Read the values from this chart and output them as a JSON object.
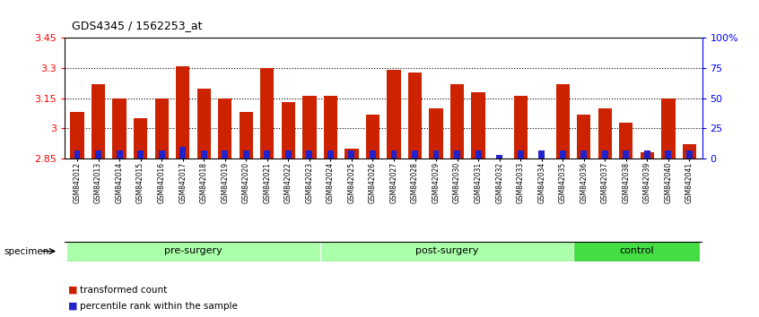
{
  "title": "GDS4345 / 1562253_at",
  "samples": [
    "GSM842012",
    "GSM842013",
    "GSM842014",
    "GSM842015",
    "GSM842016",
    "GSM842017",
    "GSM842018",
    "GSM842019",
    "GSM842020",
    "GSM842021",
    "GSM842022",
    "GSM842023",
    "GSM842024",
    "GSM842025",
    "GSM842026",
    "GSM842027",
    "GSM842028",
    "GSM842029",
    "GSM842030",
    "GSM842031",
    "GSM842032",
    "GSM842033",
    "GSM842034",
    "GSM842035",
    "GSM842036",
    "GSM842037",
    "GSM842038",
    "GSM842039",
    "GSM842040",
    "GSM842041"
  ],
  "red_values": [
    3.08,
    3.22,
    3.15,
    3.05,
    3.15,
    3.31,
    3.2,
    3.15,
    3.08,
    3.3,
    3.13,
    3.16,
    3.16,
    2.9,
    3.07,
    3.29,
    3.28,
    3.1,
    3.22,
    3.18,
    2.85,
    3.16,
    2.83,
    3.22,
    3.07,
    3.1,
    3.03,
    2.88,
    3.15,
    2.92
  ],
  "blue_values": [
    7,
    7,
    7,
    7,
    7,
    10,
    7,
    7,
    7,
    7,
    7,
    7,
    7,
    7,
    7,
    7,
    7,
    7,
    7,
    7,
    3,
    7,
    7,
    7,
    7,
    7,
    7,
    7,
    7,
    7
  ],
  "groups": [
    {
      "label": "pre-surgery",
      "start": 0,
      "end": 11
    },
    {
      "label": "post-surgery",
      "start": 12,
      "end": 23
    },
    {
      "label": "control",
      "start": 24,
      "end": 29
    }
  ],
  "group_colors": {
    "pre-surgery": "#AAFFAA",
    "post-surgery": "#AAFFAA",
    "control": "#44DD44"
  },
  "ymin": 2.85,
  "ymax": 3.45,
  "yticks": [
    2.85,
    3.0,
    3.15,
    3.3,
    3.45
  ],
  "ytick_labels": [
    "2.85",
    "3",
    "3.15",
    "3.3",
    "3.45"
  ],
  "grid_values": [
    3.0,
    3.15,
    3.3
  ],
  "right_yticks": [
    0,
    25,
    50,
    75,
    100
  ],
  "right_ylabels": [
    "0",
    "25",
    "50",
    "75",
    "100%"
  ],
  "bar_color": "#CC2200",
  "blue_color": "#2222CC",
  "bar_width": 0.65,
  "specimen_label": "specimen",
  "legend_red": "transformed count",
  "legend_blue": "percentile rank within the sample"
}
